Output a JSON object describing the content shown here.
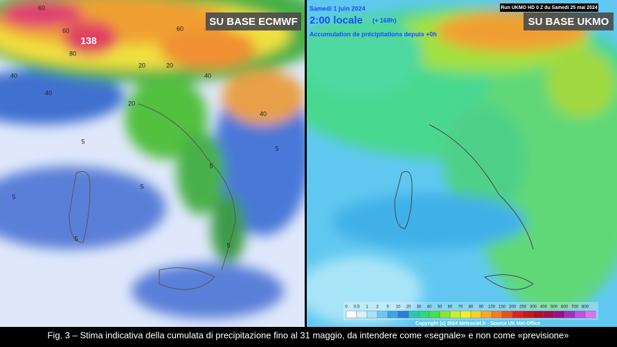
{
  "left_map": {
    "badge": "SU BASE ECMWF",
    "labels": [
      138,
      60,
      60,
      80,
      60,
      40,
      40,
      40,
      20,
      20,
      20,
      40,
      5,
      5,
      5,
      5,
      5,
      5,
      5
    ]
  },
  "right_map": {
    "badge": "SU BASE UKMO",
    "date": "Samedi 1 juin 2024",
    "time": "2:00 locale",
    "lead": "(+ 168h)",
    "subtitle": "Accumulation de précipitations depuis +0h",
    "run": "Run UKMO HD 0 Z du Samedi 25 mai 2024",
    "scale": {
      "labels": [
        0,
        0.5,
        1,
        2,
        5,
        10,
        20,
        30,
        40,
        50,
        60,
        70,
        80,
        90,
        100,
        150,
        200,
        250,
        300,
        400,
        500,
        600,
        700,
        800
      ],
      "colors": [
        "#ffffff",
        "#d4f4fc",
        "#a8e4f8",
        "#6cc8f4",
        "#3aa4ec",
        "#2c7cdc",
        "#28c8b8",
        "#30d878",
        "#48e050",
        "#88e838",
        "#c8f030",
        "#f0f030",
        "#f8d028",
        "#f8a828",
        "#f07c24",
        "#e85020",
        "#e02020",
        "#c81818",
        "#b01030",
        "#a01058",
        "#98108c",
        "#a030c0",
        "#c050e0",
        "#e070f0"
      ]
    },
    "copyright": "Copyright (c) 2024 Meteociel.fr - Source UK Met-Office"
  },
  "caption": "Fig. 3 – Stima indicativa della cumulata di precipitazione fino al 31 maggio, da intendere come «segnale» e non come «previsione»"
}
